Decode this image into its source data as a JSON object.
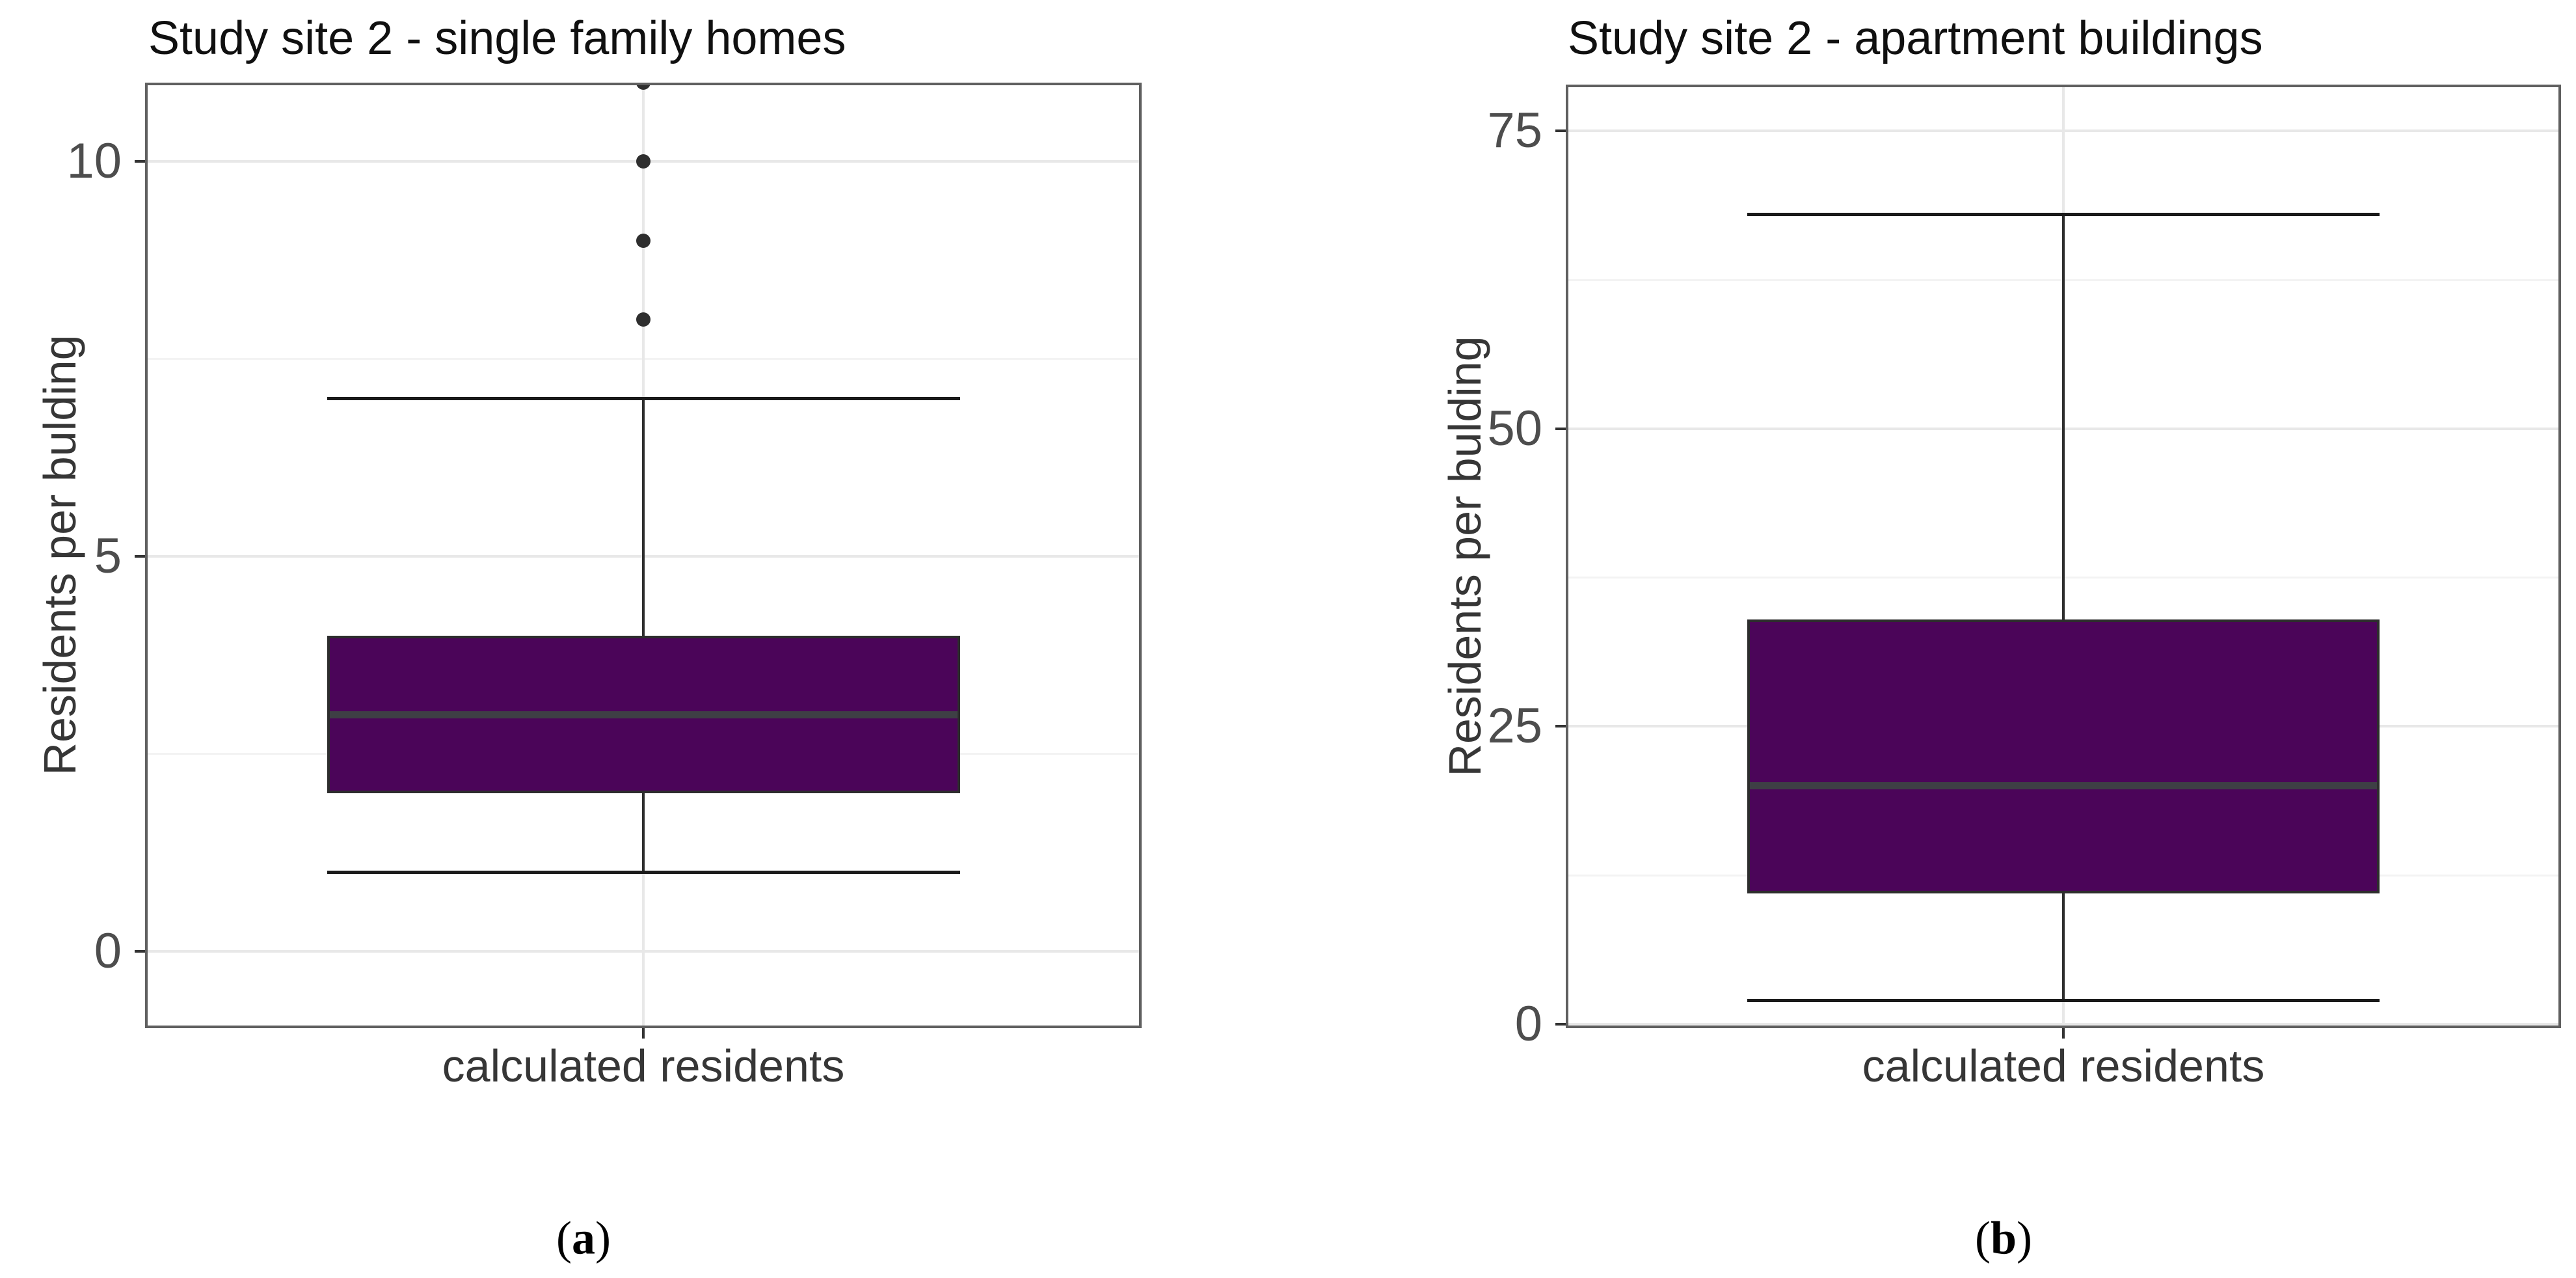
{
  "figure": {
    "background": "#ffffff"
  },
  "styles": {
    "box_fill": "#4b0559",
    "box_border": "#2d2d2d",
    "median_color": "#3e3f45",
    "whisker_color": "#2d2d2d",
    "whisker_cap_color": "#1a1a1a",
    "outlier_color": "#2e2e2e",
    "grid_major": "#e8e8e8",
    "grid_minor": "#f3f3f3",
    "panel_border": "#606060",
    "tick_mark_color": "#333333",
    "tick_label_color": "#4d4d4d",
    "axis_title_color": "#363636",
    "title_color": "#101010"
  },
  "chart_data": [
    {
      "type": "boxplot",
      "title": "Study site 2 - single family homes",
      "x_category": "calculated residents",
      "ylabel": "Residents per bulding",
      "caption": {
        "open": "(",
        "letter": "a",
        "close": ")"
      },
      "y_ticks": [
        0,
        5,
        10
      ],
      "y_minor_ticks": [
        2.5,
        7.5
      ],
      "ylim": [
        -0.97,
        11.0
      ],
      "grid": true,
      "legend": "none",
      "box": {
        "whisker_min": 1,
        "q1": 2,
        "median": 3,
        "q3": 4,
        "whisker_max": 7,
        "outliers": [
          8,
          9,
          10,
          11
        ],
        "note_top_outlier": "outlier at 11 is clipped by the panel top edge"
      }
    },
    {
      "type": "boxplot",
      "title": "Study site 2 - apartment buildings",
      "x_category": "calculated residents",
      "ylabel": "Residents per bulding",
      "caption": {
        "open": "(",
        "letter": "b",
        "close": ")"
      },
      "y_ticks": [
        0,
        25,
        50,
        75
      ],
      "y_minor_ticks": [
        12.5,
        37.5,
        62.5
      ],
      "ylim": [
        -0.33,
        78.9
      ],
      "grid": true,
      "legend": "none",
      "box": {
        "whisker_min": 2,
        "q1": 11,
        "median": 20,
        "q3": 34,
        "whisker_max": 68,
        "outliers": []
      }
    }
  ]
}
